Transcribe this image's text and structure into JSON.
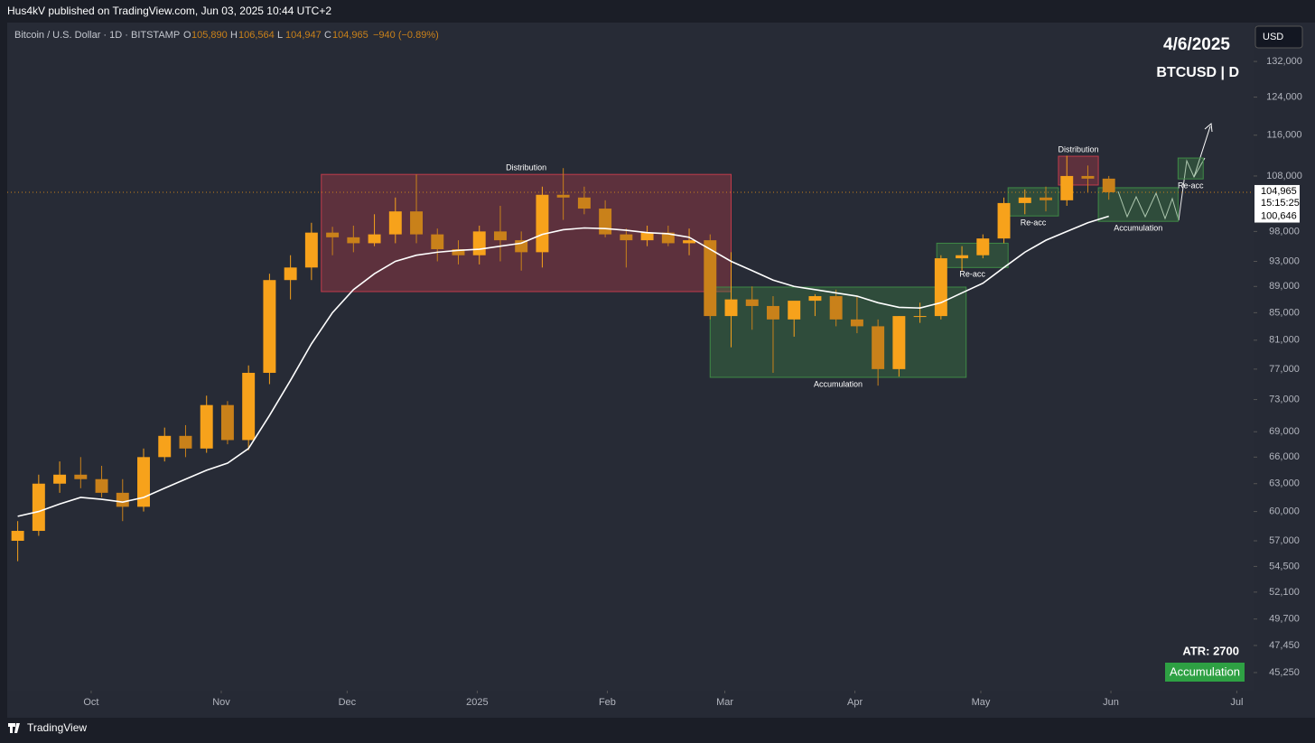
{
  "header": {
    "publisher": "Hus4kV published on TradingView.com, Jun 03, 2025 10:44 UTC+2",
    "symbol": "Bitcoin / U.S. Dollar · 1D · BITSTAMP",
    "ohlc": [
      {
        "key": "O",
        "value": "105,890"
      },
      {
        "key": "H",
        "value": "106,564"
      },
      {
        "key": "L",
        "value": "104,947"
      },
      {
        "key": "C",
        "value": "104,965"
      }
    ],
    "change": "−940 (−0.89%)",
    "currency": "USD",
    "date": "4/6/2025",
    "ticker": "BTCUSD | D"
  },
  "footer": {
    "atr": "ATR: 2700",
    "badge": "Accumulation",
    "brand": "TradingView"
  },
  "chart_data": {
    "type": "candlestick",
    "log_scale": true,
    "up_color": "#f7a21b",
    "down_color": "#c9811a",
    "ma_color": "#ffffff",
    "open": [
      57000,
      58000,
      63000,
      64000,
      63500,
      62000,
      60500,
      66000,
      68500,
      67000,
      72300,
      68000,
      76500,
      90000,
      92000,
      97800,
      97000,
      96000,
      97500,
      101500,
      97500,
      95000,
      94000,
      98000,
      96500,
      94500,
      104500,
      104000,
      102000,
      97500,
      96500,
      97800,
      96000,
      96500,
      84500,
      87000,
      86000,
      84000,
      86800,
      87500,
      84000,
      83000,
      77000,
      84500,
      84500,
      93500,
      94000,
      96800,
      103000,
      104000,
      103500,
      108000,
      107500
    ],
    "high": [
      59000,
      64000,
      65500,
      66000,
      65000,
      63500,
      67000,
      69500,
      69800,
      73500,
      72800,
      77500,
      91000,
      94000,
      99500,
      98800,
      99000,
      101000,
      104000,
      108300,
      98500,
      96500,
      99000,
      102500,
      98000,
      106000,
      109500,
      106000,
      103500,
      98500,
      99000,
      99000,
      98500,
      97500,
      94500,
      89000,
      87500,
      86000,
      87800,
      88500,
      87500,
      84000,
      84500,
      86500,
      94000,
      95500,
      97500,
      104000,
      105500,
      106000,
      111900,
      110000,
      108000
    ],
    "low": [
      55000,
      57500,
      62000,
      62500,
      61500,
      59000,
      60000,
      65500,
      66000,
      66500,
      67500,
      66800,
      75000,
      87000,
      90000,
      94000,
      94500,
      95500,
      96000,
      96000,
      93000,
      92500,
      92500,
      93000,
      91500,
      92000,
      100000,
      101000,
      97000,
      92000,
      95500,
      95500,
      94000,
      84000,
      80000,
      82500,
      76500,
      81500,
      84500,
      83000,
      82000,
      74800,
      76000,
      83500,
      84000,
      91500,
      93500,
      96000,
      101000,
      101500,
      102500,
      105000,
      103600
    ],
    "close": [
      58000,
      63000,
      64000,
      63500,
      62000,
      60500,
      66000,
      68500,
      67000,
      72300,
      68000,
      76500,
      90000,
      92000,
      97800,
      97000,
      96000,
      97500,
      101500,
      97500,
      95000,
      94000,
      98000,
      96500,
      94500,
      104500,
      104000,
      102000,
      97500,
      96500,
      97800,
      96000,
      96500,
      84500,
      87000,
      86000,
      84000,
      86800,
      87500,
      84000,
      83000,
      77000,
      84500,
      84500,
      93500,
      94000,
      96800,
      103000,
      104000,
      103500,
      108000,
      107500,
      104965
    ],
    "ma": [
      59500,
      60000,
      60800,
      61500,
      61300,
      61000,
      61500,
      62500,
      63500,
      64500,
      65300,
      67000,
      71000,
      75500,
      80500,
      85000,
      88500,
      91000,
      93000,
      94000,
      94500,
      94800,
      95000,
      95500,
      96000,
      97500,
      98300,
      98600,
      98500,
      98200,
      97800,
      97600,
      97000,
      95000,
      93000,
      91500,
      90000,
      89000,
      88500,
      88000,
      87500,
      86500,
      85800,
      85700,
      86500,
      88000,
      89500,
      92000,
      94500,
      96500,
      98000,
      99500,
      100646
    ],
    "xlim": [
      0,
      59.4
    ],
    "ylim": [
      43840,
      141300
    ],
    "xticks": [
      {
        "value": 4,
        "label": "Oct"
      },
      {
        "value": 10.2,
        "label": "Nov"
      },
      {
        "value": 16.2,
        "label": "Dec"
      },
      {
        "value": 22.4,
        "label": "2025"
      },
      {
        "value": 28.6,
        "label": "Feb"
      },
      {
        "value": 34.2,
        "label": "Mar"
      },
      {
        "value": 40.4,
        "label": "Apr"
      },
      {
        "value": 46.4,
        "label": "May"
      },
      {
        "value": 52.6,
        "label": "Jun"
      },
      {
        "value": 58.6,
        "label": "Jul"
      }
    ],
    "yticks": [
      {
        "value": 132000,
        "label": "132,000"
      },
      {
        "value": 124000,
        "label": "124,000"
      },
      {
        "value": 116000,
        "label": "116,000"
      },
      {
        "value": 108000,
        "label": "108,000"
      },
      {
        "value": 98000,
        "label": "98,000"
      },
      {
        "value": 93000,
        "label": "93,000"
      },
      {
        "value": 89000,
        "label": "89,000"
      },
      {
        "value": 85000,
        "label": "85,000"
      },
      {
        "value": 81000,
        "label": "81,000"
      },
      {
        "value": 77000,
        "label": "77,000"
      },
      {
        "value": 73000,
        "label": "73,000"
      },
      {
        "value": 69000,
        "label": "69,000"
      },
      {
        "value": 66000,
        "label": "66,000"
      },
      {
        "value": 63000,
        "label": "63,000"
      },
      {
        "value": 60000,
        "label": "60,000"
      },
      {
        "value": 57000,
        "label": "57,000"
      },
      {
        "value": 54500,
        "label": "54,500"
      },
      {
        "value": 52100,
        "label": "52,100"
      },
      {
        "value": 49700,
        "label": "49,700"
      },
      {
        "value": 47450,
        "label": "47,450"
      },
      {
        "value": 45250,
        "label": "45,250"
      }
    ],
    "last_price": {
      "value": 104965,
      "label": "104,965"
    },
    "countdown": "15:15:25",
    "ma_last": {
      "value": 100646,
      "label": "100,646"
    },
    "zones": [
      {
        "label": "Distribution",
        "color": "#c23b4b",
        "x": [
          14.97,
          34.5
        ],
        "y": [
          88200,
          108300
        ],
        "label_position": "top"
      },
      {
        "label": "Accumulation",
        "color": "#3f8a46",
        "x": [
          33.5,
          45.7
        ],
        "y": [
          75900,
          88900
        ],
        "label_position": "bottom"
      },
      {
        "label": "Re-acc",
        "color": "#3f8a46",
        "x": [
          44.3,
          47.7
        ],
        "y": [
          92000,
          96000
        ],
        "label_position": "bottom"
      },
      {
        "label": "Re-acc",
        "color": "#3f8a46",
        "x": [
          47.7,
          50.1
        ],
        "y": [
          100700,
          105800
        ],
        "label_position": "bottom"
      },
      {
        "label": "Distribution",
        "color": "#c23b4b",
        "x": [
          50.1,
          52.0
        ],
        "y": [
          106300,
          111800
        ],
        "label_position": "top"
      },
      {
        "label": "Accumulation",
        "color": "#3f8a46",
        "x": [
          52.0,
          55.8
        ],
        "y": [
          99750,
          105800
        ],
        "label_position": "bottom"
      },
      {
        "label": "Re-acc",
        "color": "#3f8a46",
        "x": [
          55.8,
          57.0
        ],
        "y": [
          107450,
          111450
        ],
        "label_position": "bottom"
      }
    ]
  }
}
